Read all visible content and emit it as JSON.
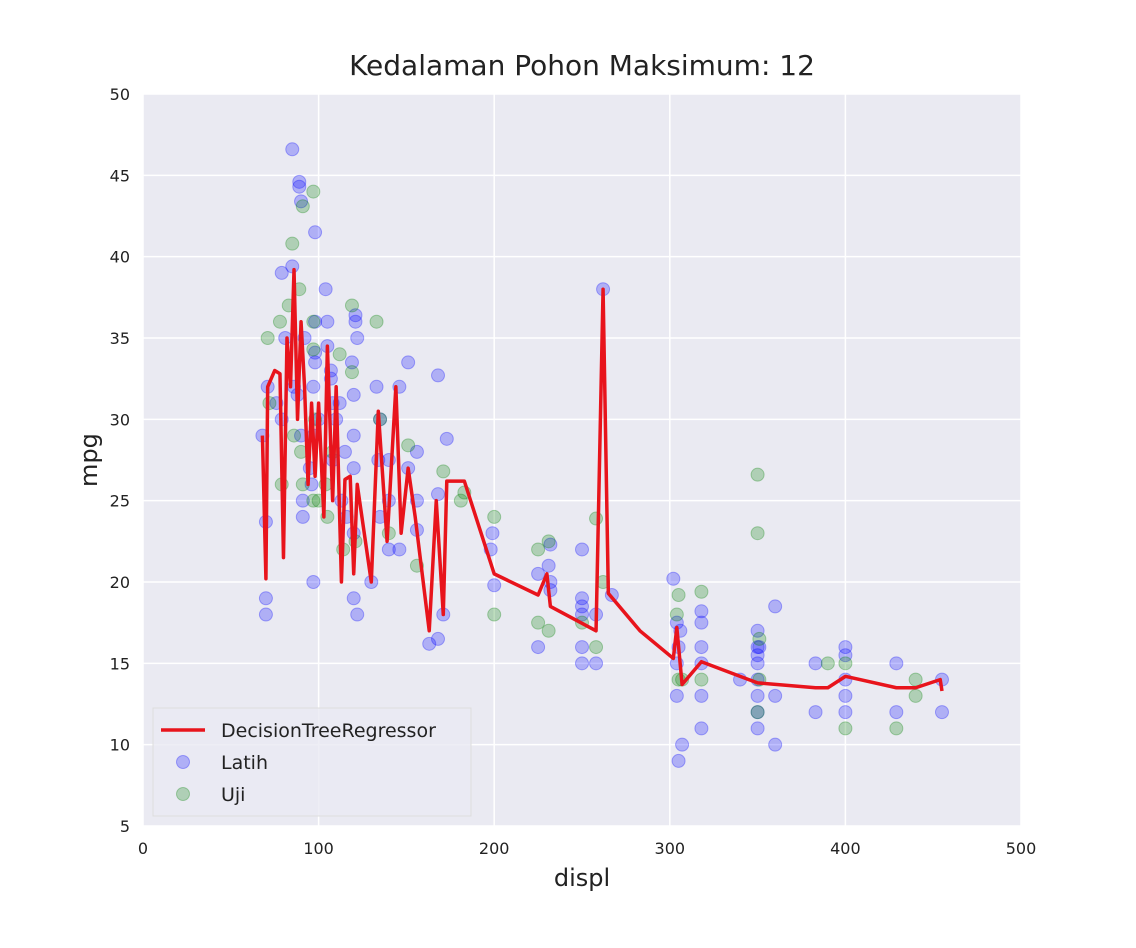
{
  "chart_data": {
    "type": "scatter",
    "title": "Kedalaman Pohon Maksimum: 12",
    "xlabel": "displ",
    "ylabel": "mpg",
    "xlim": [
      0,
      500
    ],
    "ylim": [
      5,
      50
    ],
    "xticks": [
      0,
      100,
      200,
      300,
      400,
      500
    ],
    "yticks": [
      5,
      10,
      15,
      20,
      25,
      30,
      35,
      40,
      45,
      50
    ],
    "grid": true,
    "legend": "lower left",
    "series": [
      {
        "name": "DecisionTreeRegressor",
        "type": "line",
        "color": "#e8141c",
        "x": [
          68,
          70,
          71,
          75,
          78,
          80,
          82,
          84,
          86,
          88,
          90,
          92,
          94,
          96,
          98,
          100,
          103,
          105,
          108,
          110,
          113,
          115,
          118,
          120,
          122,
          130,
          134,
          139,
          144,
          147,
          151,
          155,
          163,
          167,
          171,
          173,
          183,
          200,
          225,
          230,
          232,
          258,
          262,
          265,
          283,
          302,
          304,
          307,
          318,
          345,
          350,
          383,
          390,
          400,
          429,
          440,
          454,
          455
        ],
        "values": [
          29,
          20.2,
          32,
          33,
          32.8,
          21.5,
          35,
          32,
          39.2,
          30,
          36,
          32,
          26,
          31,
          26.5,
          31,
          24,
          34.5,
          25,
          32,
          20,
          26.3,
          26.5,
          20.5,
          26,
          20,
          30.5,
          22.5,
          32,
          23,
          27,
          24,
          17,
          25,
          18,
          26.2,
          26.2,
          20.5,
          19.2,
          20.5,
          18.5,
          17,
          38,
          19.3,
          17,
          15.3,
          17.2,
          13.7,
          15.1,
          14,
          13.8,
          13.5,
          13.5,
          14.2,
          13.5,
          13.5,
          14,
          13.3
        ]
      },
      {
        "name": "Latih",
        "type": "scatter",
        "color": "#0000ff",
        "x": [
          68,
          70,
          70,
          70,
          71,
          76,
          79,
          79,
          81,
          85,
          85,
          86,
          88,
          89,
          89,
          90,
          90,
          91,
          91,
          92,
          95,
          96,
          97,
          97,
          97,
          98,
          98,
          98,
          98,
          100,
          104,
          105,
          105,
          107,
          107,
          108,
          108,
          110,
          112,
          113,
          115,
          116,
          119,
          120,
          120,
          120,
          120,
          120,
          121,
          121,
          122,
          122,
          130,
          133,
          134,
          135,
          135,
          140,
          140,
          140,
          146,
          146,
          151,
          151,
          156,
          156,
          156,
          163,
          168,
          168,
          168,
          171,
          173,
          198,
          199,
          200,
          225,
          225,
          231,
          232,
          232,
          232,
          250,
          250,
          250,
          250,
          250,
          250,
          258,
          258,
          262,
          267,
          302,
          304,
          304,
          304,
          305,
          305,
          306,
          307,
          318,
          318,
          318,
          318,
          318,
          318,
          340,
          350,
          350,
          350,
          350,
          350,
          350,
          350,
          350,
          351,
          360,
          360,
          360,
          383,
          383,
          400,
          400,
          400,
          400,
          400,
          429,
          429,
          455,
          455
        ],
        "values": [
          29,
          23.7,
          19,
          18,
          32,
          31,
          39,
          30,
          35,
          46.6,
          39.4,
          32,
          31.5,
          44.6,
          44.3,
          43.4,
          29,
          25,
          24,
          35,
          27,
          26,
          32,
          29,
          20,
          41.5,
          36,
          34.1,
          33.5,
          30,
          38,
          34.5,
          36,
          33,
          32.5,
          31,
          27.5,
          30,
          31,
          25,
          28,
          24,
          33.5,
          31.5,
          29,
          27,
          23,
          19,
          36.4,
          36,
          35,
          18,
          20,
          32,
          27.5,
          30,
          24,
          27.5,
          25,
          22,
          22,
          32,
          33.5,
          27,
          28,
          25,
          23.2,
          16.2,
          32.7,
          25.4,
          16.5,
          18,
          28.8,
          22,
          23,
          19.8,
          16,
          20.5,
          21,
          22.3,
          20,
          19.5,
          22,
          19,
          18.5,
          18,
          16,
          15,
          18,
          15,
          38,
          19.2,
          20.2,
          17.5,
          15,
          13,
          9,
          16,
          17,
          10,
          18.2,
          17.5,
          16,
          15,
          13,
          11,
          14,
          17,
          16,
          15.5,
          15,
          14,
          13,
          12,
          11,
          16,
          13,
          18.5,
          10,
          12,
          15,
          16,
          15.5,
          14,
          13,
          12,
          15,
          12,
          14,
          12
        ]
      },
      {
        "name": "Uji",
        "type": "scatter",
        "color": "#008000",
        "x": [
          71,
          72,
          78,
          79,
          83,
          85,
          86,
          89,
          90,
          91,
          91,
          97,
          97,
          97,
          97,
          98,
          100,
          104,
          105,
          108,
          112,
          114,
          119,
          119,
          121,
          133,
          135,
          140,
          151,
          156,
          171,
          181,
          183,
          200,
          200,
          225,
          225,
          231,
          231,
          250,
          258,
          258,
          262,
          304,
          305,
          305,
          307,
          318,
          318,
          350,
          350,
          351,
          351,
          350,
          390,
          400,
          400,
          429,
          440,
          440
        ],
        "values": [
          35,
          31,
          36,
          26,
          37,
          40.8,
          29,
          38,
          28,
          43.1,
          26,
          44,
          36,
          34.3,
          25,
          30,
          25,
          26,
          24,
          28,
          34,
          22,
          37,
          32.9,
          22.5,
          36,
          30,
          23,
          28.4,
          21,
          26.8,
          25,
          25.5,
          18,
          24,
          17.5,
          22,
          17,
          22.5,
          17.5,
          16,
          23.9,
          20,
          18,
          14,
          19.2,
          14,
          14,
          19.4,
          26.6,
          23,
          16.5,
          14,
          12,
          15,
          15,
          11,
          11,
          14,
          13
        ]
      }
    ]
  }
}
